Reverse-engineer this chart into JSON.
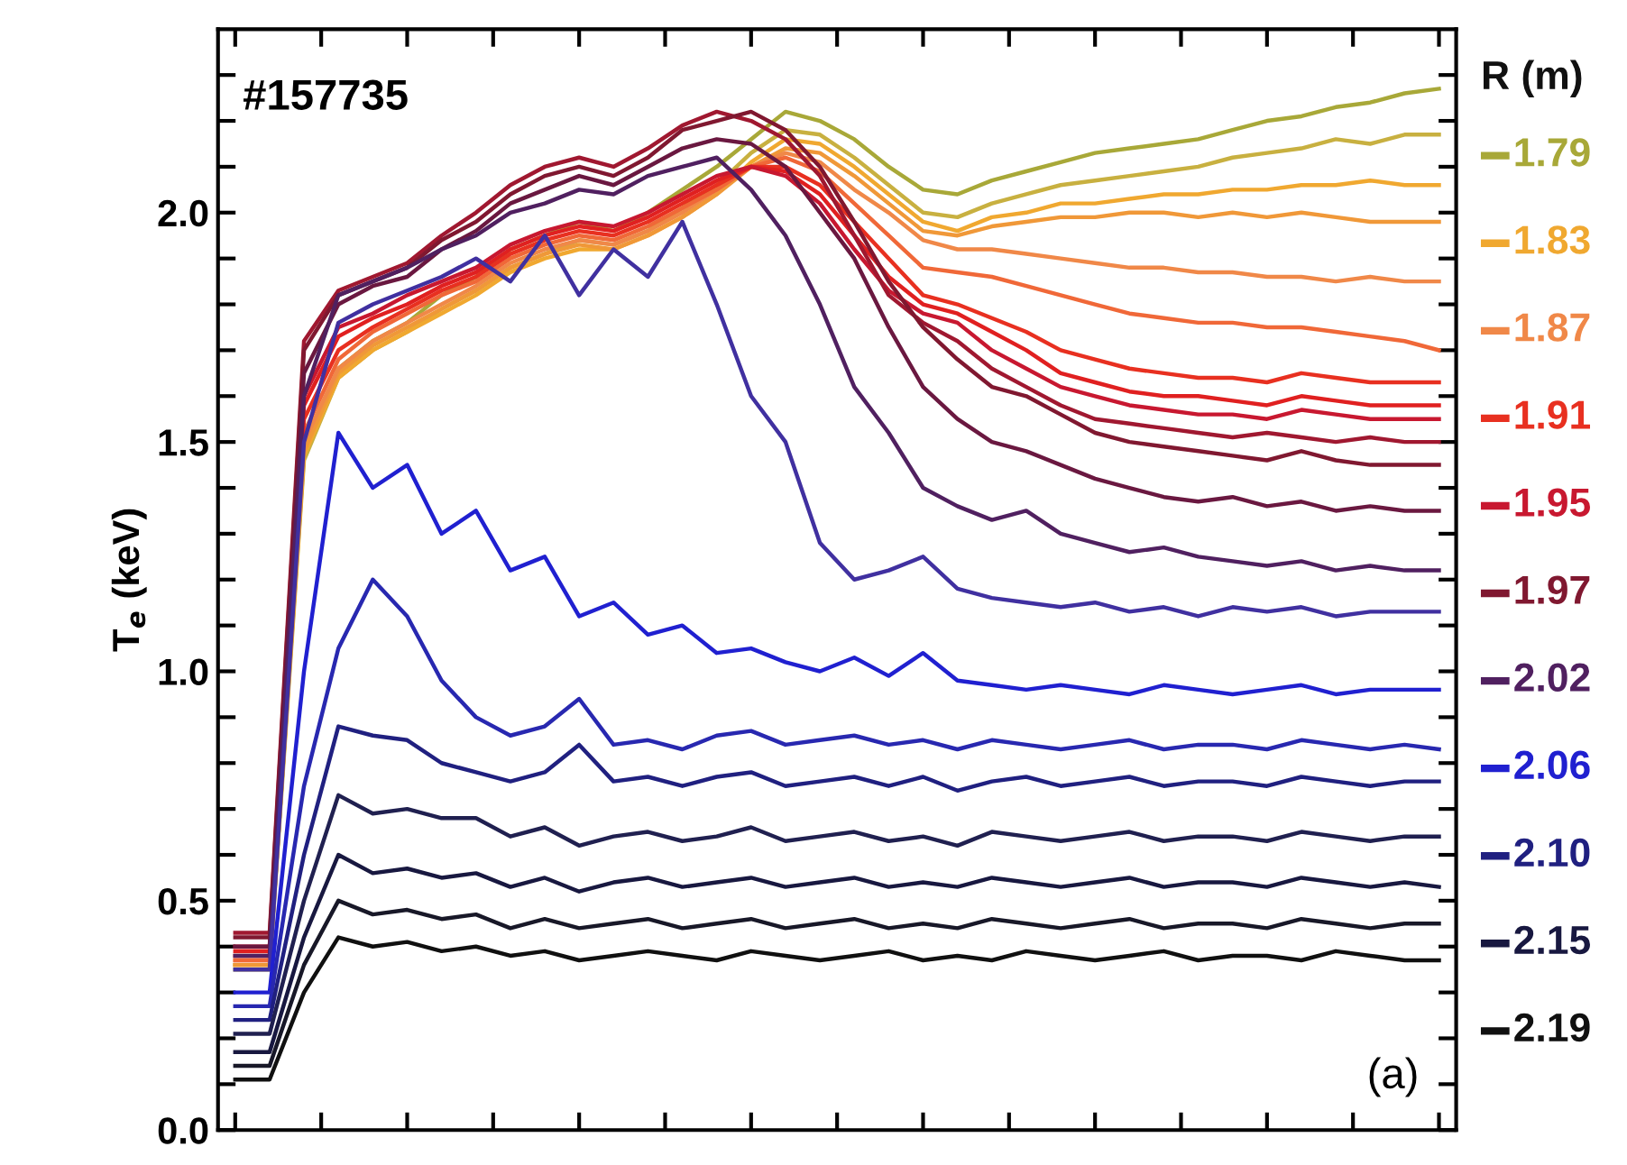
{
  "chart_data": {
    "type": "line",
    "ylabel": "T$_{e}$ (keV)",
    "legend_title": "R (m)",
    "annotations": [
      "#157735",
      "(a)"
    ],
    "categories": [
      null,
      null,
      null,
      null,
      null,
      null,
      null,
      null,
      null,
      null,
      null,
      null,
      null,
      null,
      null,
      null,
      null,
      null,
      null,
      null,
      null,
      null,
      null,
      null,
      null,
      null,
      null,
      null,
      null,
      null,
      null,
      null,
      null,
      null,
      null,
      null
    ],
    "ylim": [
      0,
      2.4
    ],
    "yticks": [
      {
        "value": 0,
        "label": "0.0"
      },
      {
        "value": 0.1,
        "label": null
      },
      {
        "value": 0.2,
        "label": null
      },
      {
        "value": 0.3,
        "label": null
      },
      {
        "value": 0.4,
        "label": null
      },
      {
        "value": 0.5,
        "label": "0.5"
      },
      {
        "value": 0.6,
        "label": null
      },
      {
        "value": 0.7,
        "label": null
      },
      {
        "value": 0.8,
        "label": null
      },
      {
        "value": 0.9,
        "label": null
      },
      {
        "value": 1.0,
        "label": "1.0"
      },
      {
        "value": 1.1,
        "label": null
      },
      {
        "value": 1.2,
        "label": null
      },
      {
        "value": 1.3,
        "label": null
      },
      {
        "value": 1.4,
        "label": null
      },
      {
        "value": 1.5,
        "label": "1.5"
      },
      {
        "value": 1.6,
        "label": null
      },
      {
        "value": 1.7,
        "label": null
      },
      {
        "value": 1.8,
        "label": null
      },
      {
        "value": 1.9,
        "label": null
      },
      {
        "value": 2.0,
        "label": "2.0"
      },
      {
        "value": 2.1,
        "label": null
      },
      {
        "value": 2.2,
        "label": null
      },
      {
        "value": 2.3,
        "label": null
      }
    ],
    "tick_labels": "y",
    "grid": false,
    "legend": "right",
    "marker": "none",
    "line_style": "solid",
    "series": [
      {
        "name": "1.79",
        "color": "#a8a838",
        "values": [
          0.36,
          0.36,
          1.48,
          1.66,
          1.72,
          1.76,
          1.82,
          1.86,
          1.92,
          1.95,
          1.98,
          1.96,
          2.0,
          2.05,
          2.1,
          2.16,
          2.22,
          2.2,
          2.16,
          2.1,
          2.05,
          2.04,
          2.07,
          2.09,
          2.11,
          2.13,
          2.14,
          2.15,
          2.16,
          2.18,
          2.2,
          2.21,
          2.23,
          2.24,
          2.26,
          2.27
        ]
      },
      {
        "color": "#c8b040",
        "values": [
          0.35,
          0.35,
          1.46,
          1.64,
          1.7,
          1.74,
          1.79,
          1.83,
          1.88,
          1.91,
          1.94,
          1.93,
          1.96,
          2.01,
          2.06,
          2.13,
          2.18,
          2.17,
          2.12,
          2.06,
          2.0,
          1.99,
          2.02,
          2.04,
          2.06,
          2.07,
          2.08,
          2.09,
          2.1,
          2.12,
          2.13,
          2.14,
          2.16,
          2.15,
          2.17,
          2.17
        ]
      },
      {
        "name": "1.83",
        "color": "#f0a830",
        "values": [
          0.36,
          0.36,
          1.47,
          1.64,
          1.7,
          1.74,
          1.78,
          1.82,
          1.87,
          1.9,
          1.92,
          1.92,
          1.95,
          1.99,
          2.04,
          2.11,
          2.16,
          2.15,
          2.1,
          2.04,
          1.98,
          1.96,
          1.99,
          2.0,
          2.02,
          2.02,
          2.03,
          2.04,
          2.04,
          2.05,
          2.05,
          2.06,
          2.06,
          2.07,
          2.06,
          2.06
        ]
      },
      {
        "color": "#f09838",
        "values": [
          0.36,
          0.36,
          1.48,
          1.65,
          1.71,
          1.75,
          1.79,
          1.83,
          1.88,
          1.91,
          1.93,
          1.92,
          1.95,
          1.99,
          2.04,
          2.1,
          2.14,
          2.13,
          2.08,
          2.02,
          1.96,
          1.95,
          1.97,
          1.98,
          1.99,
          1.99,
          2.0,
          2.0,
          1.99,
          2.0,
          1.99,
          2.0,
          1.99,
          1.98,
          1.98,
          1.98
        ]
      },
      {
        "name": "1.87",
        "color": "#f08848",
        "values": [
          0.37,
          0.37,
          1.5,
          1.66,
          1.72,
          1.76,
          1.8,
          1.84,
          1.89,
          1.92,
          1.94,
          1.93,
          1.96,
          2.0,
          2.05,
          2.1,
          2.13,
          2.11,
          2.05,
          2.0,
          1.94,
          1.92,
          1.92,
          1.91,
          1.9,
          1.89,
          1.88,
          1.88,
          1.87,
          1.87,
          1.86,
          1.86,
          1.85,
          1.86,
          1.85,
          1.85
        ]
      },
      {
        "color": "#f06838",
        "values": [
          0.37,
          0.37,
          1.52,
          1.68,
          1.74,
          1.78,
          1.82,
          1.85,
          1.9,
          1.93,
          1.95,
          1.94,
          1.97,
          2.01,
          2.05,
          2.1,
          2.12,
          2.09,
          2.02,
          1.95,
          1.88,
          1.87,
          1.86,
          1.84,
          1.82,
          1.8,
          1.78,
          1.77,
          1.76,
          1.76,
          1.75,
          1.75,
          1.74,
          1.73,
          1.72,
          1.7
        ]
      },
      {
        "name": "1.91",
        "color": "#e83020",
        "values": [
          0.38,
          0.38,
          1.55,
          1.7,
          1.75,
          1.79,
          1.83,
          1.86,
          1.91,
          1.94,
          1.96,
          1.95,
          1.98,
          2.02,
          2.06,
          2.1,
          2.1,
          2.06,
          1.98,
          1.9,
          1.82,
          1.8,
          1.77,
          1.74,
          1.7,
          1.68,
          1.66,
          1.65,
          1.64,
          1.64,
          1.63,
          1.65,
          1.64,
          1.63,
          1.63,
          1.63
        ]
      },
      {
        "color": "#e02020",
        "values": [
          0.39,
          0.39,
          1.58,
          1.73,
          1.77,
          1.8,
          1.84,
          1.87,
          1.92,
          1.95,
          1.97,
          1.96,
          1.99,
          2.03,
          2.07,
          2.1,
          2.09,
          2.04,
          1.95,
          1.86,
          1.8,
          1.78,
          1.74,
          1.7,
          1.65,
          1.63,
          1.61,
          1.6,
          1.6,
          1.59,
          1.58,
          1.6,
          1.59,
          1.58,
          1.58,
          1.58
        ]
      },
      {
        "name": "1.95",
        "color": "#c81830",
        "values": [
          0.4,
          0.4,
          1.6,
          1.75,
          1.78,
          1.82,
          1.85,
          1.88,
          1.93,
          1.96,
          1.98,
          1.97,
          2.0,
          2.04,
          2.08,
          2.1,
          2.08,
          2.02,
          1.92,
          1.83,
          1.78,
          1.76,
          1.7,
          1.66,
          1.62,
          1.6,
          1.58,
          1.57,
          1.56,
          1.56,
          1.55,
          1.57,
          1.56,
          1.55,
          1.55,
          1.55
        ]
      },
      {
        "color": "#a01830",
        "values": [
          0.43,
          0.43,
          1.72,
          1.83,
          1.86,
          1.89,
          1.95,
          2.0,
          2.06,
          2.1,
          2.12,
          2.1,
          2.14,
          2.19,
          2.22,
          2.2,
          2.16,
          2.08,
          1.95,
          1.82,
          1.76,
          1.72,
          1.66,
          1.62,
          1.58,
          1.55,
          1.54,
          1.53,
          1.52,
          1.51,
          1.52,
          1.51,
          1.5,
          1.51,
          1.5,
          1.5
        ]
      },
      {
        "name": "1.97",
        "color": "#801830",
        "values": [
          0.42,
          0.42,
          1.7,
          1.82,
          1.85,
          1.88,
          1.94,
          1.98,
          2.04,
          2.08,
          2.1,
          2.08,
          2.12,
          2.18,
          2.2,
          2.22,
          2.18,
          2.1,
          1.98,
          1.85,
          1.75,
          1.68,
          1.62,
          1.6,
          1.56,
          1.52,
          1.5,
          1.49,
          1.48,
          1.47,
          1.46,
          1.48,
          1.46,
          1.45,
          1.45,
          1.45
        ]
      },
      {
        "color": "#6a1840",
        "values": [
          0.4,
          0.4,
          1.65,
          1.8,
          1.84,
          1.86,
          1.92,
          1.96,
          2.02,
          2.05,
          2.08,
          2.06,
          2.1,
          2.14,
          2.16,
          2.15,
          2.1,
          2.0,
          1.9,
          1.75,
          1.62,
          1.55,
          1.5,
          1.48,
          1.45,
          1.42,
          1.4,
          1.38,
          1.37,
          1.38,
          1.36,
          1.37,
          1.35,
          1.36,
          1.35,
          1.35
        ]
      },
      {
        "name": "2.02",
        "color": "#502060",
        "values": [
          0.38,
          0.38,
          1.6,
          1.82,
          1.85,
          1.88,
          1.92,
          1.95,
          2.0,
          2.02,
          2.05,
          2.04,
          2.08,
          2.1,
          2.12,
          2.05,
          1.95,
          1.8,
          1.62,
          1.52,
          1.4,
          1.36,
          1.33,
          1.35,
          1.3,
          1.28,
          1.26,
          1.27,
          1.25,
          1.24,
          1.23,
          1.24,
          1.22,
          1.23,
          1.22,
          1.22
        ]
      },
      {
        "color": "#4030a0",
        "values": [
          0.35,
          0.35,
          1.5,
          1.76,
          1.8,
          1.83,
          1.86,
          1.9,
          1.85,
          1.95,
          1.82,
          1.92,
          1.86,
          1.98,
          1.8,
          1.6,
          1.5,
          1.28,
          1.2,
          1.22,
          1.25,
          1.18,
          1.16,
          1.15,
          1.14,
          1.15,
          1.13,
          1.14,
          1.12,
          1.14,
          1.13,
          1.14,
          1.12,
          1.13,
          1.13,
          1.13
        ]
      },
      {
        "name": "2.06",
        "color": "#2020d0",
        "values": [
          0.3,
          0.3,
          1.0,
          1.52,
          1.4,
          1.45,
          1.3,
          1.35,
          1.22,
          1.25,
          1.12,
          1.15,
          1.08,
          1.1,
          1.04,
          1.05,
          1.02,
          1.0,
          1.03,
          0.99,
          1.04,
          0.98,
          0.97,
          0.96,
          0.97,
          0.96,
          0.95,
          0.97,
          0.96,
          0.95,
          0.96,
          0.97,
          0.95,
          0.96,
          0.96,
          0.96
        ]
      },
      {
        "color": "#2828b0",
        "values": [
          0.27,
          0.27,
          0.75,
          1.05,
          1.2,
          1.12,
          0.98,
          0.9,
          0.86,
          0.88,
          0.94,
          0.84,
          0.85,
          0.83,
          0.86,
          0.87,
          0.84,
          0.85,
          0.86,
          0.84,
          0.85,
          0.83,
          0.85,
          0.84,
          0.83,
          0.84,
          0.85,
          0.83,
          0.84,
          0.84,
          0.83,
          0.85,
          0.84,
          0.83,
          0.84,
          0.83
        ]
      },
      {
        "name": "2.10",
        "color": "#202080",
        "values": [
          0.24,
          0.24,
          0.6,
          0.88,
          0.86,
          0.85,
          0.8,
          0.78,
          0.76,
          0.78,
          0.84,
          0.76,
          0.77,
          0.75,
          0.77,
          0.78,
          0.75,
          0.76,
          0.77,
          0.75,
          0.77,
          0.74,
          0.76,
          0.77,
          0.75,
          0.76,
          0.77,
          0.75,
          0.76,
          0.76,
          0.75,
          0.77,
          0.76,
          0.75,
          0.76,
          0.76
        ]
      },
      {
        "color": "#202050",
        "values": [
          0.21,
          0.21,
          0.5,
          0.73,
          0.69,
          0.7,
          0.68,
          0.68,
          0.64,
          0.66,
          0.62,
          0.64,
          0.65,
          0.63,
          0.64,
          0.66,
          0.63,
          0.64,
          0.65,
          0.63,
          0.64,
          0.62,
          0.65,
          0.64,
          0.63,
          0.64,
          0.65,
          0.63,
          0.64,
          0.64,
          0.63,
          0.65,
          0.64,
          0.63,
          0.64,
          0.64
        ]
      },
      {
        "name": "2.15",
        "color": "#181840",
        "values": [
          0.17,
          0.17,
          0.42,
          0.6,
          0.56,
          0.57,
          0.55,
          0.56,
          0.53,
          0.55,
          0.52,
          0.54,
          0.55,
          0.53,
          0.54,
          0.55,
          0.53,
          0.54,
          0.55,
          0.53,
          0.54,
          0.53,
          0.55,
          0.54,
          0.53,
          0.54,
          0.55,
          0.53,
          0.54,
          0.54,
          0.53,
          0.55,
          0.54,
          0.53,
          0.54,
          0.53
        ]
      },
      {
        "color": "#181828",
        "values": [
          0.14,
          0.14,
          0.36,
          0.5,
          0.47,
          0.48,
          0.46,
          0.47,
          0.44,
          0.46,
          0.44,
          0.45,
          0.46,
          0.44,
          0.45,
          0.46,
          0.44,
          0.45,
          0.46,
          0.44,
          0.45,
          0.44,
          0.46,
          0.45,
          0.44,
          0.45,
          0.46,
          0.44,
          0.45,
          0.45,
          0.44,
          0.46,
          0.45,
          0.44,
          0.45,
          0.45
        ]
      },
      {
        "name": "2.19",
        "color": "#101010",
        "values": [
          0.11,
          0.11,
          0.3,
          0.42,
          0.4,
          0.41,
          0.39,
          0.4,
          0.38,
          0.39,
          0.37,
          0.38,
          0.39,
          0.38,
          0.37,
          0.39,
          0.38,
          0.37,
          0.38,
          0.39,
          0.37,
          0.38,
          0.37,
          0.39,
          0.38,
          0.37,
          0.38,
          0.39,
          0.37,
          0.38,
          0.38,
          0.37,
          0.39,
          0.38,
          0.37,
          0.37
        ]
      }
    ]
  }
}
